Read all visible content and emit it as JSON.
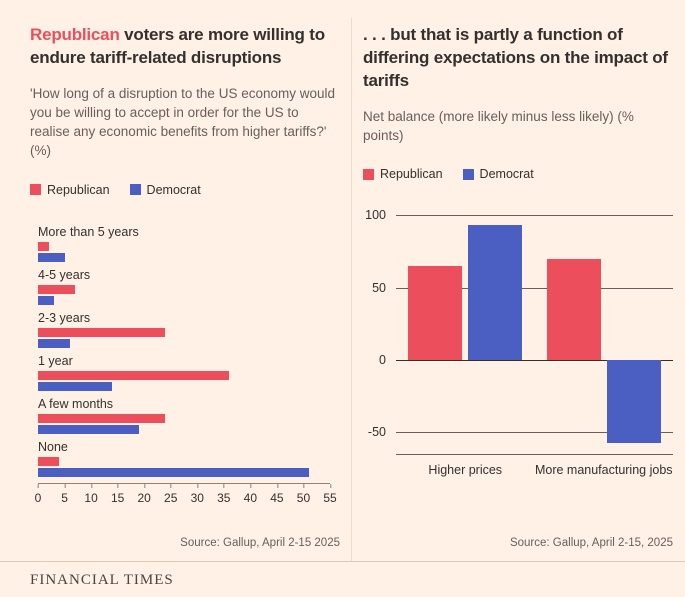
{
  "page": {
    "background": "#fff1e5",
    "footer": "FINANCIAL TIMES"
  },
  "colors": {
    "republican": "#ed4e5c",
    "democrat": "#4a5fc1",
    "background": "#fff1e5"
  },
  "left_panel": {
    "title_highlight": "Republican",
    "title_rest": " voters are more willing to endure tariff-related disruptions",
    "subtitle": "'How long of a disruption to the US economy would you be willing to accept in order for the US to realise any economic benefits from higher tariffs?' (%)",
    "legend": [
      {
        "label": "Republican",
        "color": "#ed4e5c"
      },
      {
        "label": "Democrat",
        "color": "#4a5fc1"
      }
    ],
    "source": "Source: Gallup, April 2-15 2025"
  },
  "right_panel": {
    "title": ". . . but that is partly a function of differing expectations on the impact of tariffs",
    "subtitle": "Net balance (more likely minus less likely) (% points)",
    "legend": [
      {
        "label": "Republican",
        "color": "#ed4e5c"
      },
      {
        "label": "Democrat",
        "color": "#4a5fc1"
      }
    ],
    "source": "Source: Gallup, April 2-15, 2025"
  },
  "chart_data": [
    {
      "type": "bar",
      "orientation": "horizontal",
      "title": "Republican voters are more willing to endure tariff-related disruptions",
      "subtitle": "'How long of a disruption to the US economy would you be willing to accept in order for the US to realise any economic benefits from higher tariffs?' (%)",
      "categories": [
        "More than 5 years",
        "4-5 years",
        "2-3 years",
        "1 year",
        "A few months",
        "None"
      ],
      "series": [
        {
          "name": "Republican",
          "color": "#ed4e5c",
          "values": [
            2,
            7,
            24,
            36,
            24,
            4
          ]
        },
        {
          "name": "Democrat",
          "color": "#4a5fc1",
          "values": [
            5,
            3,
            6,
            14,
            19,
            51
          ]
        }
      ],
      "xlim": [
        0,
        55
      ],
      "xticks": [
        0,
        5,
        10,
        15,
        20,
        25,
        30,
        35,
        40,
        45,
        50,
        55
      ],
      "grid": false,
      "legend_position": "top",
      "source": "Source: Gallup, April 2-15 2025"
    },
    {
      "type": "bar",
      "orientation": "vertical",
      "title": ". . . but that is partly a function of differing expectations on the impact of tariffs",
      "subtitle": "Net balance (more likely minus less likely) (% points)",
      "categories": [
        "Higher prices",
        "More manufacturing jobs"
      ],
      "series": [
        {
          "name": "Republican",
          "color": "#ed4e5c",
          "values": [
            65,
            70
          ]
        },
        {
          "name": "Democrat",
          "color": "#4a5fc1",
          "values": [
            93,
            -57
          ]
        }
      ],
      "ylim": [
        -65,
        100
      ],
      "yticks": [
        100,
        50,
        0,
        -50
      ],
      "grid": true,
      "legend_position": "top",
      "source": "Source: Gallup, April 2-15, 2025"
    }
  ]
}
